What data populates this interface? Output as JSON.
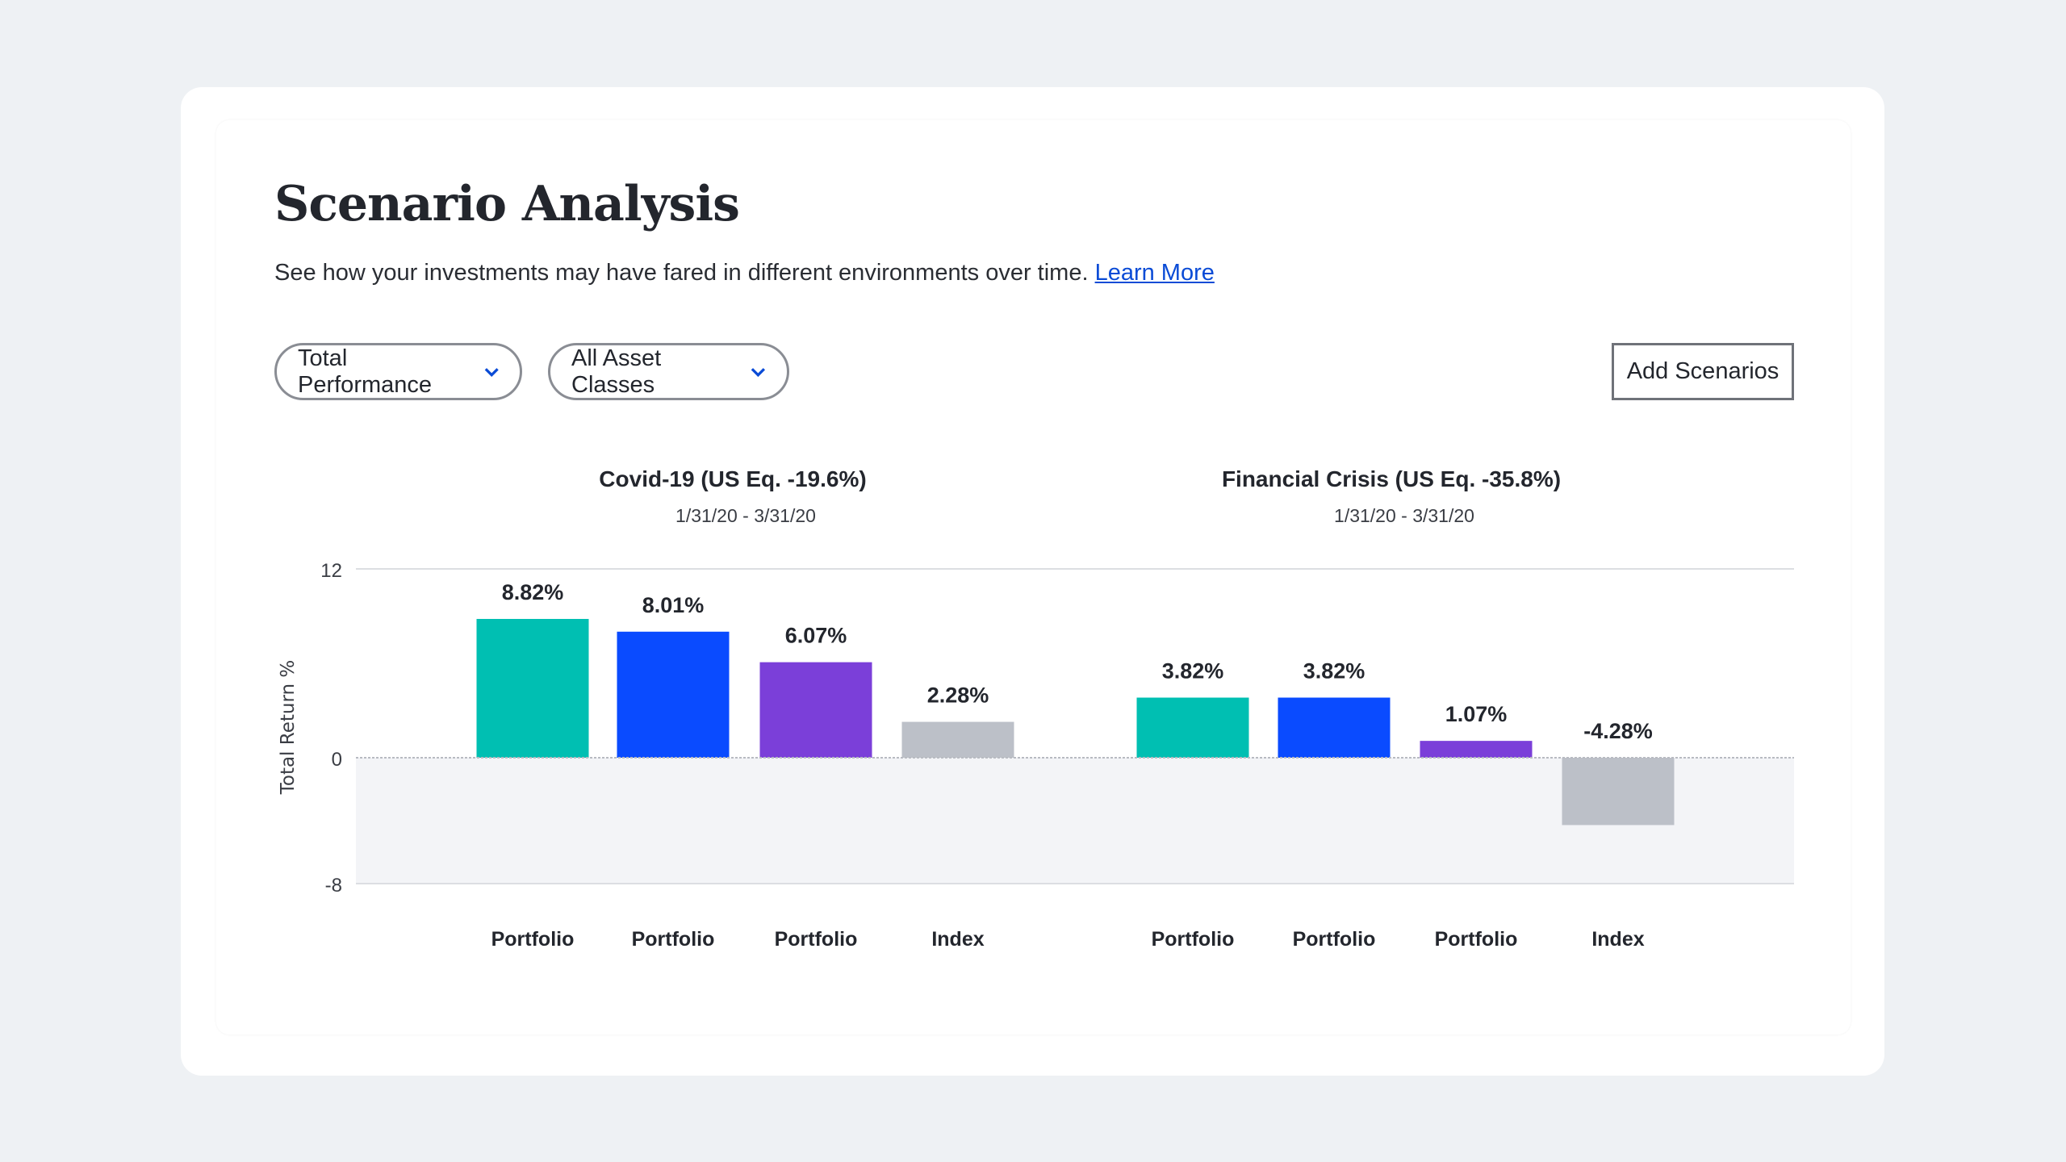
{
  "header": {
    "title": "Scenario Analysis",
    "subtitle": "See how your investments may have fared in different environments over time.",
    "learn_more": "Learn More"
  },
  "controls": {
    "performance_dropdown": "Total Performance",
    "asset_dropdown": "All Asset Classes",
    "add_scenarios": "Add Scenarios",
    "chevron_icon": "chevron-down-icon",
    "accent": "#0a4bd6"
  },
  "chart_data": {
    "type": "bar",
    "ylabel": "Total Return %",
    "ylim": [
      -8,
      12
    ],
    "yticks": [
      "12",
      "0",
      "-8"
    ],
    "grid": true,
    "groups": [
      {
        "title": "Covid-19 (US Eq. -19.6%)",
        "dates": "1/31/20 - 3/31/20",
        "categories": [
          "Portfolio",
          "Portfolio",
          "Portfolio",
          "Index"
        ],
        "values": [
          8.82,
          8.01,
          6.07,
          2.28
        ],
        "labels": [
          "8.82%",
          "8.01%",
          "6.07%",
          "2.28%"
        ]
      },
      {
        "title": "Financial Crisis (US Eq. -35.8%)",
        "dates": "1/31/20 - 3/31/20",
        "categories": [
          "Portfolio",
          "Portfolio",
          "Portfolio",
          "Index"
        ],
        "values": [
          3.82,
          3.82,
          1.07,
          -4.28
        ],
        "labels": [
          "3.82%",
          "3.82%",
          "1.07%",
          "-4.28%"
        ]
      }
    ],
    "colors": [
      "#00bfb2",
      "#0a4bff",
      "#7b3fd9",
      "#bcc0c8"
    ]
  }
}
